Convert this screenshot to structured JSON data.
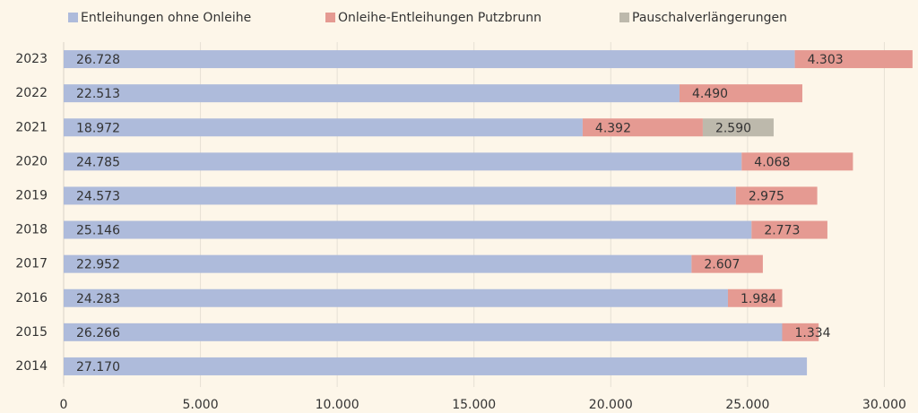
{
  "chart_data": {
    "type": "stacked_barh",
    "categories": [
      "2023",
      "2022",
      "2021",
      "2020",
      "2019",
      "2018",
      "2017",
      "2016",
      "2015",
      "2014"
    ],
    "series": [
      {
        "name": "Entleihungen ohne Onleihe",
        "color": "#aebbdb",
        "values": [
          26728,
          22513,
          18972,
          24785,
          24573,
          25146,
          22952,
          24283,
          26266,
          27170
        ],
        "value_labels": [
          "26.728",
          "22.513",
          "18.972",
          "24.785",
          "24.573",
          "25.146",
          "22.952",
          "24.283",
          "26.266",
          "27.170"
        ]
      },
      {
        "name": "Onleihe-Entleihungen Putzbrunn",
        "color": "#e59a92",
        "values": [
          4303,
          4490,
          4392,
          4068,
          2975,
          2773,
          2607,
          1984,
          1334,
          null
        ],
        "value_labels": [
          "4.303",
          "4.490",
          "4.392",
          "4.068",
          "2.975",
          "2.773",
          "2.607",
          "1.984",
          "1.334",
          null
        ]
      },
      {
        "name": "Pauschalverlängerungen",
        "color": "#bdb9ac",
        "values": [
          null,
          null,
          2590,
          null,
          null,
          null,
          null,
          null,
          null,
          null
        ],
        "value_labels": [
          null,
          null,
          "2.590",
          null,
          null,
          null,
          null,
          null,
          null,
          null
        ]
      }
    ],
    "xlim": [
      0,
      31100
    ],
    "xticks": [
      0,
      {
        "value": 5000,
        "label": "5.000"
      },
      {
        "value": 10000,
        "label": "10.000"
      },
      {
        "value": 15000,
        "label": "15.000"
      },
      {
        "value": 20000,
        "label": "20.000"
      },
      {
        "value": 25000,
        "label": "25.000"
      },
      {
        "value": 30000,
        "label": "30.000"
      }
    ],
    "grid": true,
    "legend": "top"
  }
}
